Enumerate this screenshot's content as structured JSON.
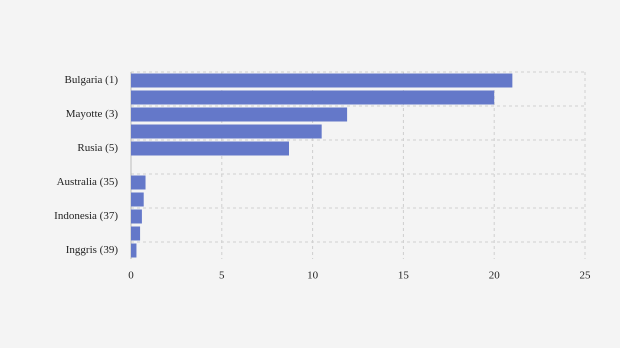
{
  "chart_data": {
    "type": "bar",
    "orientation": "horizontal",
    "categories": [
      "Bulgaria (1)",
      null,
      "Mayotte (3)",
      null,
      "Rusia (5)",
      null,
      "Australia (35)",
      null,
      "Indonesia (37)",
      null,
      "Inggris (39)"
    ],
    "values": [
      21,
      20,
      11.9,
      10.5,
      8.7,
      0,
      0.8,
      0.7,
      0.6,
      0.5,
      0.3
    ],
    "color": "#6478c9",
    "xlim": [
      0,
      25
    ],
    "xticks": [
      0,
      5,
      10,
      15,
      20,
      25
    ],
    "grid": true
  }
}
